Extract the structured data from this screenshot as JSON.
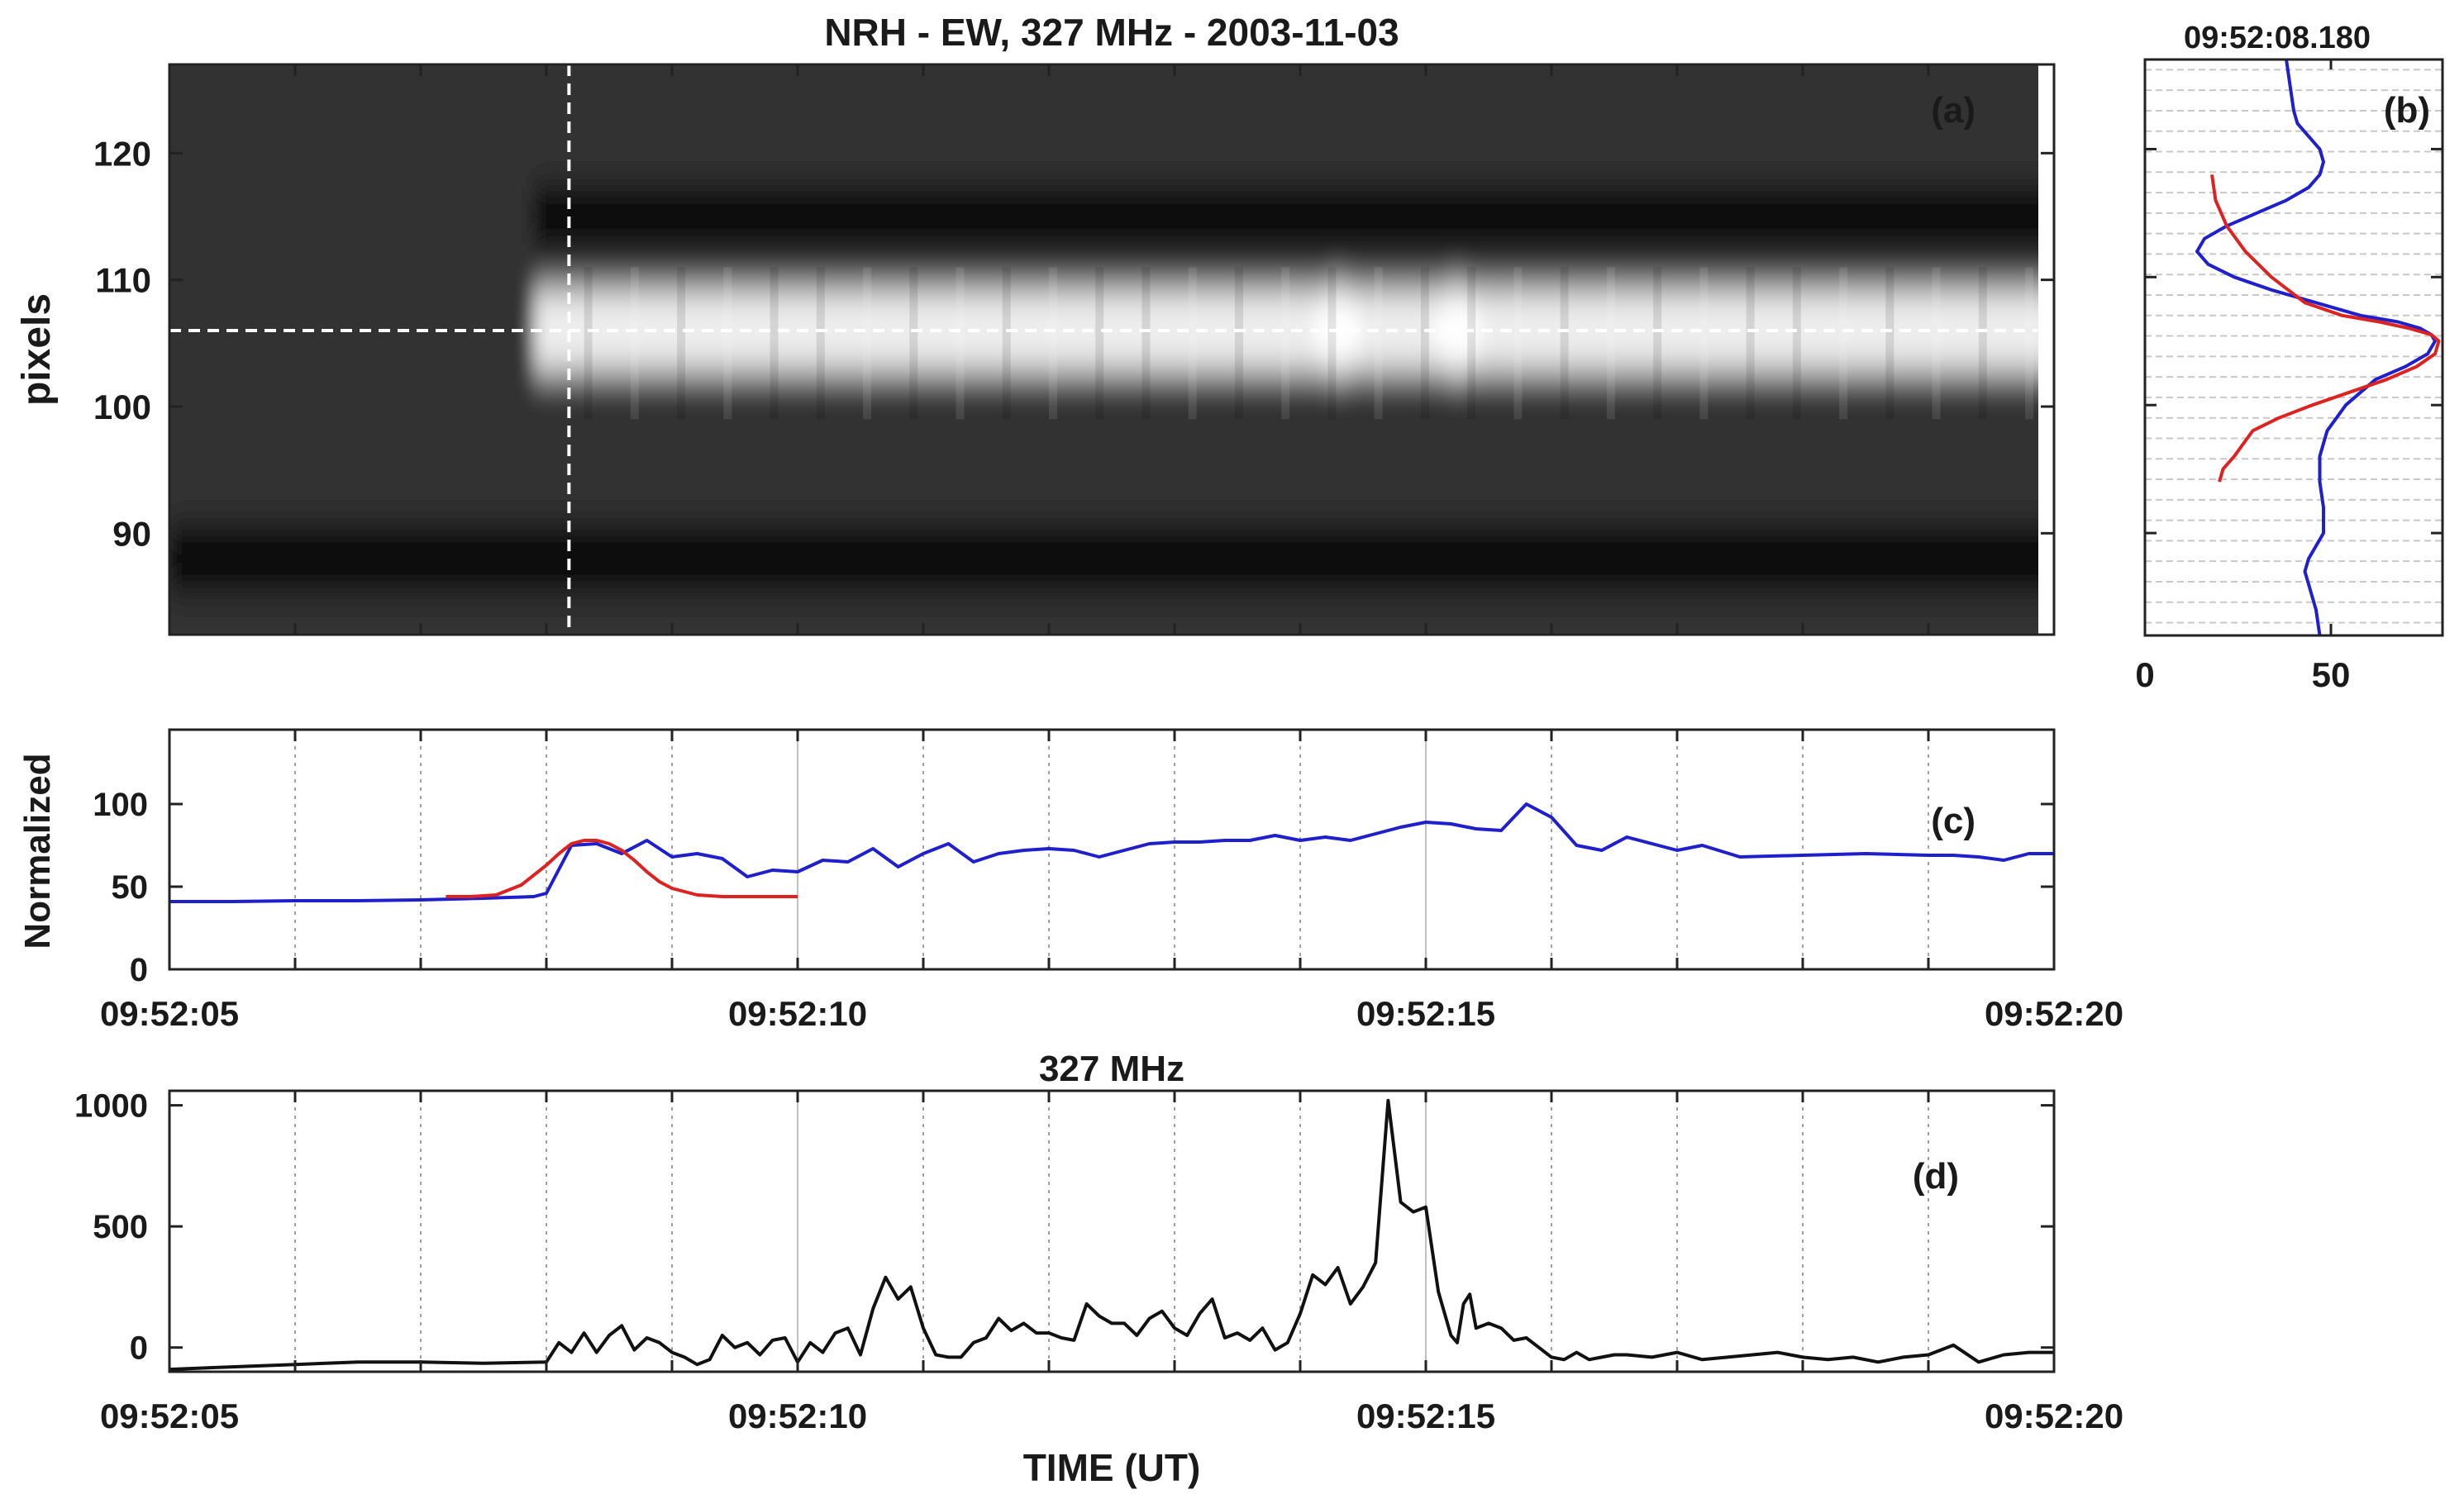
{
  "chart_data": [
    {
      "id": "a",
      "type": "heatmap",
      "panel_label": "(a)",
      "title": "NRH - EW, 327 MHz  -  2003-11-03",
      "ylabel": "pixels",
      "xlim": [
        0,
        15
      ],
      "ylim": [
        82,
        127
      ],
      "yticks": [
        90,
        100,
        110,
        120
      ],
      "ytick_labels": [
        "90",
        "100",
        "110",
        "120"
      ],
      "cursor_time": 3.18,
      "cursor_pixel": 106,
      "bands": [
        {
          "y": 115,
          "width": 4.5,
          "value": -1.0,
          "start": 2.9
        },
        {
          "y": 106,
          "width": 6.5,
          "value": 0.9,
          "start": 2.9
        },
        {
          "y": 88,
          "width": 5,
          "value": -0.35,
          "start": 0
        }
      ],
      "bright_spots": [
        {
          "t": 9.3,
          "y": 106,
          "value": 1.0
        },
        {
          "t": 10.25,
          "y": 106,
          "value": 1.0
        }
      ]
    },
    {
      "id": "b",
      "type": "line",
      "panel_label": "(b)",
      "title": "09:52:08.180",
      "xlim": [
        0,
        80
      ],
      "xticks": [
        0,
        50
      ],
      "xtick_labels": [
        "0",
        "50"
      ],
      "ylim": [
        82,
        127
      ],
      "yticks": [
        90,
        100,
        110,
        120
      ],
      "series": [
        {
          "color": "#1f1fcc",
          "x": [
            38,
            39,
            40,
            41,
            44,
            47,
            48,
            47,
            44,
            38,
            30,
            22,
            16,
            14,
            17,
            24,
            34,
            46,
            58,
            68,
            74,
            77,
            78,
            76,
            70,
            62,
            54,
            49,
            47,
            47,
            48,
            48,
            46,
            44,
            43,
            44,
            46,
            47
          ],
          "y": [
            127,
            125,
            123,
            122,
            121,
            120,
            119,
            118,
            117,
            116,
            115,
            114,
            113,
            112,
            111,
            110,
            109,
            108,
            107,
            106.5,
            106,
            105.5,
            105,
            104,
            103,
            102,
            100,
            98,
            96,
            94,
            92,
            90,
            89,
            88,
            87,
            86,
            84,
            82
          ]
        },
        {
          "color": "#dd2222",
          "x": [
            18,
            19,
            22,
            27,
            34,
            43,
            53,
            63,
            71,
            77,
            79,
            78,
            73,
            65,
            55,
            45,
            36,
            29,
            24,
            21,
            20
          ],
          "y": [
            118,
            116,
            114,
            112,
            110,
            108,
            107,
            106.5,
            106,
            105.5,
            105,
            104,
            103,
            102,
            101,
            100,
            99,
            98,
            96,
            95,
            94
          ]
        }
      ]
    },
    {
      "id": "c",
      "type": "line",
      "panel_label": "(c)",
      "ylabel": "Normalized",
      "xlim": [
        0,
        15
      ],
      "xticks": [
        0,
        5,
        10,
        15
      ],
      "xtick_labels": [
        "09:52:05",
        "09:52:10",
        "09:52:15",
        "09:52:20"
      ],
      "ylim": [
        0,
        145
      ],
      "yticks": [
        0,
        50,
        100
      ],
      "ytick_labels": [
        "0",
        "50",
        "100"
      ],
      "series": [
        {
          "color": "#1f1fcc",
          "x": [
            0,
            0.5,
            1,
            1.5,
            2,
            2.5,
            2.9,
            3.0,
            3.2,
            3.4,
            3.6,
            3.8,
            4.0,
            4.2,
            4.4,
            4.6,
            4.8,
            5.0,
            5.2,
            5.4,
            5.6,
            5.8,
            6.0,
            6.2,
            6.4,
            6.6,
            6.8,
            7.0,
            7.2,
            7.4,
            7.6,
            7.8,
            8.0,
            8.2,
            8.4,
            8.6,
            8.8,
            9.0,
            9.2,
            9.4,
            9.6,
            9.8,
            10.0,
            10.2,
            10.4,
            10.6,
            10.8,
            11.0,
            11.2,
            11.4,
            11.6,
            11.8,
            12.0,
            12.2,
            12.5,
            13.0,
            13.5,
            14.0,
            14.2,
            14.4,
            14.6,
            14.8,
            15.0
          ],
          "y": [
            41,
            41,
            41.5,
            41.5,
            42,
            43,
            44,
            46,
            75,
            76,
            70,
            78,
            68,
            70,
            67,
            56,
            60,
            59,
            66,
            65,
            73,
            62,
            70,
            76,
            65,
            70,
            72,
            73,
            72,
            68,
            72,
            76,
            77,
            77,
            78,
            78,
            81,
            78,
            80,
            78,
            82,
            86,
            89,
            88,
            85,
            84,
            100,
            92,
            75,
            72,
            80,
            76,
            72,
            75,
            68,
            69,
            70,
            69,
            69,
            68,
            66,
            70,
            70
          ]
        },
        {
          "color": "#dd2222",
          "x": [
            2.2,
            2.4,
            2.6,
            2.8,
            3.0,
            3.1,
            3.2,
            3.3,
            3.4,
            3.5,
            3.6,
            3.7,
            3.8,
            3.9,
            4.0,
            4.2,
            4.4,
            4.6,
            4.8,
            5.0
          ],
          "y": [
            44,
            44,
            45,
            51,
            63,
            70,
            76,
            78,
            78,
            76,
            72,
            66,
            59,
            53,
            49,
            45,
            44,
            44,
            44,
            44
          ]
        }
      ]
    },
    {
      "id": "d",
      "type": "line",
      "title": "327 MHz",
      "panel_label": "(d)",
      "xlabel": "TIME (UT)",
      "xlim": [
        0,
        15
      ],
      "xticks": [
        0,
        5,
        10,
        15
      ],
      "xtick_labels": [
        "09:52:05",
        "09:52:10",
        "09:52:15",
        "09:52:20"
      ],
      "ylim": [
        -100,
        1060
      ],
      "yticks": [
        0,
        500,
        1000
      ],
      "ytick_labels": [
        "0",
        "500",
        "1000"
      ],
      "series": [
        {
          "color": "#111111",
          "x": [
            0,
            0.5,
            1,
            1.5,
            2,
            2.5,
            3,
            3.1,
            3.2,
            3.3,
            3.4,
            3.5,
            3.6,
            3.7,
            3.8,
            3.9,
            4.0,
            4.1,
            4.2,
            4.3,
            4.4,
            4.5,
            4.6,
            4.7,
            4.8,
            4.9,
            5.0,
            5.1,
            5.2,
            5.3,
            5.4,
            5.5,
            5.6,
            5.7,
            5.8,
            5.9,
            6.0,
            6.1,
            6.2,
            6.3,
            6.4,
            6.5,
            6.6,
            6.7,
            6.8,
            6.9,
            7.0,
            7.1,
            7.2,
            7.3,
            7.4,
            7.5,
            7.6,
            7.7,
            7.8,
            7.9,
            8.0,
            8.1,
            8.2,
            8.3,
            8.4,
            8.5,
            8.6,
            8.7,
            8.8,
            8.9,
            9.0,
            9.1,
            9.2,
            9.3,
            9.4,
            9.5,
            9.6,
            9.7,
            9.8,
            9.9,
            10.0,
            10.1,
            10.2,
            10.25,
            10.3,
            10.35,
            10.4,
            10.5,
            10.6,
            10.7,
            10.8,
            10.9,
            11.0,
            11.1,
            11.2,
            11.3,
            11.4,
            11.5,
            11.6,
            11.8,
            12.0,
            12.2,
            12.4,
            12.6,
            12.8,
            13.0,
            13.2,
            13.4,
            13.6,
            13.8,
            14.0,
            14.2,
            14.4,
            14.6,
            14.8,
            15.0
          ],
          "y": [
            -90,
            -80,
            -70,
            -60,
            -60,
            -65,
            -60,
            20,
            -20,
            60,
            -20,
            50,
            90,
            -10,
            40,
            20,
            -20,
            -40,
            -70,
            -50,
            50,
            0,
            20,
            -30,
            30,
            40,
            -60,
            20,
            -20,
            60,
            80,
            -30,
            160,
            290,
            200,
            250,
            80,
            -30,
            -40,
            -40,
            20,
            40,
            120,
            70,
            100,
            60,
            60,
            40,
            30,
            180,
            130,
            100,
            100,
            50,
            120,
            150,
            80,
            50,
            140,
            200,
            40,
            60,
            30,
            80,
            -10,
            20,
            140,
            300,
            260,
            330,
            180,
            250,
            350,
            1020,
            600,
            560,
            580,
            230,
            50,
            20,
            180,
            220,
            80,
            100,
            80,
            30,
            40,
            0,
            -40,
            -50,
            -20,
            -50,
            -40,
            -30,
            -30,
            -40,
            -20,
            -50,
            -40,
            -30,
            -20,
            -40,
            -50,
            -40,
            -60,
            -40,
            -30,
            10,
            -60,
            -30,
            -20,
            -20
          ]
        }
      ]
    }
  ]
}
